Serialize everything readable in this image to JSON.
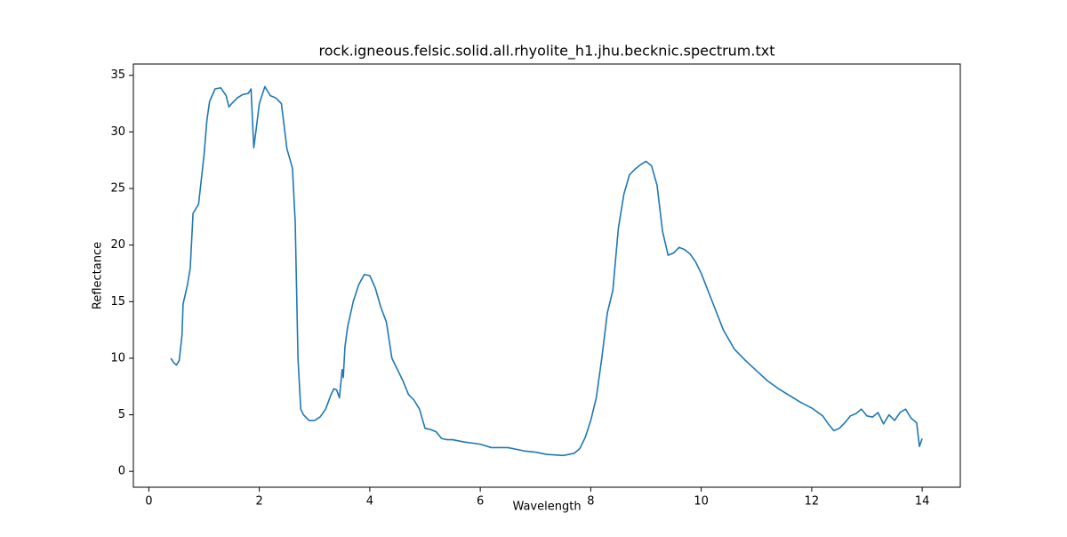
{
  "chart_data": {
    "type": "line",
    "title": "rock.igneous.felsic.solid.all.rhyolite_h1.jhu.becknic.spectrum.txt",
    "x_label": "Wavelength",
    "y_label": "Reflectance",
    "color": "#1f77b4",
    "x": [
      0.4,
      0.45,
      0.5,
      0.55,
      0.6,
      0.62,
      0.7,
      0.75,
      0.8,
      0.9,
      1.0,
      1.05,
      1.1,
      1.2,
      1.3,
      1.4,
      1.45,
      1.5,
      1.6,
      1.7,
      1.8,
      1.85,
      1.9,
      1.95,
      2.0,
      2.1,
      2.2,
      2.3,
      2.4,
      2.5,
      2.6,
      2.65,
      2.7,
      2.75,
      2.8,
      2.9,
      3.0,
      3.1,
      3.2,
      3.3,
      3.35,
      3.4,
      3.45,
      3.5,
      3.52,
      3.55,
      3.6,
      3.7,
      3.8,
      3.9,
      4.0,
      4.1,
      4.2,
      4.3,
      4.4,
      4.5,
      4.6,
      4.7,
      4.8,
      4.9,
      5.0,
      5.1,
      5.2,
      5.3,
      5.4,
      5.5,
      5.7,
      6.0,
      6.2,
      6.5,
      6.8,
      7.0,
      7.2,
      7.5,
      7.7,
      7.8,
      7.9,
      8.0,
      8.1,
      8.2,
      8.3,
      8.4,
      8.5,
      8.6,
      8.7,
      8.8,
      8.9,
      9.0,
      9.1,
      9.2,
      9.3,
      9.4,
      9.5,
      9.6,
      9.7,
      9.8,
      9.9,
      10.0,
      10.2,
      10.4,
      10.6,
      10.8,
      11.0,
      11.2,
      11.4,
      11.6,
      11.8,
      12.0,
      12.2,
      12.3,
      12.4,
      12.5,
      12.6,
      12.7,
      12.8,
      12.9,
      13.0,
      13.1,
      13.2,
      13.3,
      13.4,
      13.5,
      13.6,
      13.7,
      13.8,
      13.9,
      13.95,
      14.0
    ],
    "values": [
      10.0,
      9.6,
      9.4,
      9.8,
      12,
      14.8,
      16.5,
      18,
      22.8,
      23.6,
      28,
      31,
      32.7,
      33.8,
      33.9,
      33.2,
      32.2,
      32.5,
      33,
      33.3,
      33.4,
      33.8,
      28.6,
      30.5,
      32.5,
      34,
      33.2,
      33,
      32.5,
      28.5,
      26.8,
      22,
      10,
      5.5,
      5.0,
      4.5,
      4.5,
      4.8,
      5.5,
      6.8,
      7.3,
      7.2,
      6.5,
      9,
      8.3,
      11,
      12.8,
      15,
      16.5,
      17.4,
      17.3,
      16.2,
      14.5,
      13.2,
      10,
      9,
      8,
      6.8,
      6.3,
      5.5,
      3.8,
      3.7,
      3.5,
      2.9,
      2.8,
      2.8,
      2.6,
      2.4,
      2.1,
      2.1,
      1.8,
      1.7,
      1.5,
      1.4,
      1.6,
      2.0,
      3.0,
      4.5,
      6.5,
      10,
      14,
      16,
      21.5,
      24.5,
      26.2,
      26.7,
      27.1,
      27.4,
      27,
      25.3,
      21.2,
      19.1,
      19.3,
      19.8,
      19.6,
      19.2,
      18.5,
      17.5,
      15,
      12.5,
      10.8,
      9.8,
      8.9,
      8,
      7.3,
      6.7,
      6.1,
      5.6,
      4.9,
      4.2,
      3.6,
      3.8,
      4.3,
      4.9,
      5.1,
      5.5,
      4.9,
      4.8,
      5.2,
      4.2,
      5.0,
      4.5,
      5.2,
      5.5,
      4.7,
      4.3,
      2.2,
      2.9
    ],
    "xlim": [
      -0.28,
      14.69
    ],
    "ylim": [
      -1.4,
      36.0
    ],
    "xticks": [
      0,
      2,
      4,
      6,
      8,
      10,
      12,
      14
    ],
    "yticks": [
      0,
      5,
      10,
      15,
      20,
      25,
      30,
      35
    ]
  }
}
